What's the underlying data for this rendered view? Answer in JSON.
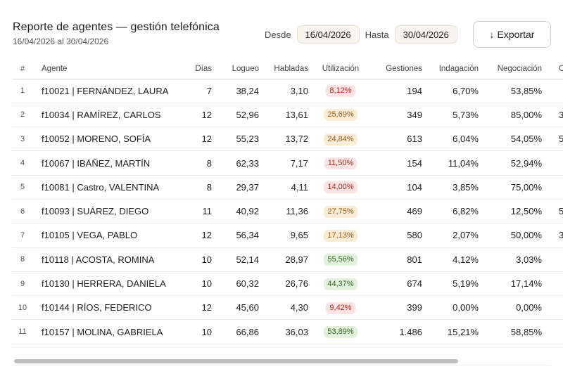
{
  "report": {
    "title": "Reporte de agentes — gestión telefónica",
    "range_text": "16/04/2026 al 30/04/2026"
  },
  "filters": {
    "from_label": "Desde",
    "from_value": "16/04/2026",
    "to_label": "Hasta",
    "to_value": "30/04/2026"
  },
  "export": {
    "icon": "arrow-down-icon",
    "label": "Exportar"
  },
  "table": {
    "headers": [
      "#",
      "Agente",
      "Días",
      "Logueo",
      "Habladas",
      "Utilización",
      "Gestiones",
      "Indagación",
      "Negociación",
      "Cum"
    ],
    "rows": [
      {
        "n": "1",
        "agent": "f10021 | FERNÁNDEZ, LAURA",
        "dias": "7",
        "logueo": "38,24",
        "habladas": "3,10",
        "util": "8,12%",
        "util_level": "red",
        "gest": "194",
        "indag": "6,70%",
        "negoc": "53,85%",
        "cum": ""
      },
      {
        "n": "2",
        "agent": "f10034 | RAMÍREZ, CARLOS",
        "dias": "12",
        "logueo": "52,96",
        "habladas": "13,61",
        "util": "25,69%",
        "util_level": "orange",
        "gest": "349",
        "indag": "5,73%",
        "negoc": "85,00%",
        "cum": "3"
      },
      {
        "n": "3",
        "agent": "f10052 | MORENO, SOFÍA",
        "dias": "12",
        "logueo": "55,23",
        "habladas": "13,72",
        "util": "24,84%",
        "util_level": "orange",
        "gest": "613",
        "indag": "6,04%",
        "negoc": "54,05%",
        "cum": "5"
      },
      {
        "n": "4",
        "agent": "f10067 | IBÁÑEZ, MARTÍN",
        "dias": "8",
        "logueo": "62,33",
        "habladas": "7,17",
        "util": "11,50%",
        "util_level": "red",
        "gest": "154",
        "indag": "11,04%",
        "negoc": "52,94%",
        "cum": ""
      },
      {
        "n": "5",
        "agent": "f10081 | Castro, VALENTINA",
        "dias": "8",
        "logueo": "29,37",
        "habladas": "4,11",
        "util": "14,00%",
        "util_level": "red",
        "gest": "104",
        "indag": "3,85%",
        "negoc": "75,00%",
        "cum": ""
      },
      {
        "n": "6",
        "agent": "f10093 | SUÁREZ, DIEGO",
        "dias": "11",
        "logueo": "40,92",
        "habladas": "11,36",
        "util": "27,75%",
        "util_level": "orange",
        "gest": "469",
        "indag": "6,82%",
        "negoc": "12,50%",
        "cum": "5"
      },
      {
        "n": "7",
        "agent": "f10105 | VEGA, PABLO",
        "dias": "12",
        "logueo": "56,34",
        "habladas": "9,65",
        "util": "17,13%",
        "util_level": "orange",
        "gest": "580",
        "indag": "2,07%",
        "negoc": "50,00%",
        "cum": "3"
      },
      {
        "n": "8",
        "agent": "f10118 | ACOSTA, ROMINA",
        "dias": "10",
        "logueo": "52,14",
        "habladas": "28,97",
        "util": "55,56%",
        "util_level": "green",
        "gest": "801",
        "indag": "4,12%",
        "negoc": "3,03%",
        "cum": ""
      },
      {
        "n": "9",
        "agent": "f10130 | HERRERA, DANIELA",
        "dias": "10",
        "logueo": "60,32",
        "habladas": "26,76",
        "util": "44,37%",
        "util_level": "green",
        "gest": "674",
        "indag": "5,19%",
        "negoc": "17,14%",
        "cum": ""
      },
      {
        "n": "10",
        "agent": "f10144 | RÍOS, FEDERICO",
        "dias": "12",
        "logueo": "45,60",
        "habladas": "4,30",
        "util": "9,42%",
        "util_level": "red",
        "gest": "399",
        "indag": "0,00%",
        "negoc": "0,00%",
        "cum": ""
      },
      {
        "n": "11",
        "agent": "f10157 | MOLINA, GABRIELA",
        "dias": "10",
        "logueo": "66,86",
        "habladas": "36,03",
        "util": "53,89%",
        "util_level": "green",
        "gest": "1.486",
        "indag": "15,21%",
        "negoc": "58,85%",
        "cum": ""
      }
    ]
  },
  "scrollbar": {
    "position_fraction": 0.0,
    "visible_fraction": 0.83
  },
  "colors": {
    "util_red": "#b3261e",
    "util_orange": "#9a5a10",
    "util_green": "#2f6b1f"
  }
}
